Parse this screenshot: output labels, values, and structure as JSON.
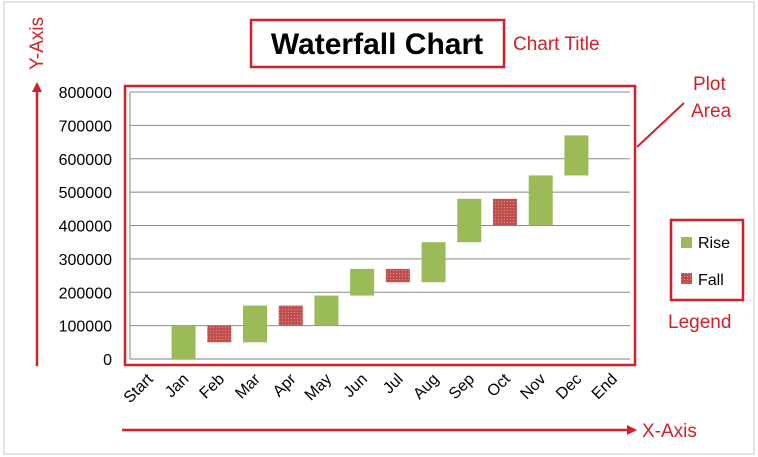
{
  "chart_data": {
    "type": "bar",
    "subtype": "waterfall",
    "title": "Waterfall Chart",
    "categories": [
      "Start",
      "Jan",
      "Feb",
      "Mar",
      "Apr",
      "May",
      "Jun",
      "Jul",
      "Aug",
      "Sep",
      "Oct",
      "Nov",
      "Dec",
      "End"
    ],
    "series": [
      {
        "name": "Rise",
        "color": "#9bbb59",
        "bars": [
          {
            "category": "Jan",
            "low": 0,
            "high": 100000
          },
          {
            "category": "Mar",
            "low": 50000,
            "high": 160000
          },
          {
            "category": "May",
            "low": 100000,
            "high": 190000
          },
          {
            "category": "Jun",
            "low": 190000,
            "high": 270000
          },
          {
            "category": "Aug",
            "low": 230000,
            "high": 350000
          },
          {
            "category": "Sep",
            "low": 350000,
            "high": 480000
          },
          {
            "category": "Nov",
            "low": 400000,
            "high": 550000
          },
          {
            "category": "Dec",
            "low": 550000,
            "high": 670000
          }
        ]
      },
      {
        "name": "Fall",
        "color": "#c0504d",
        "bars": [
          {
            "category": "Feb",
            "low": 50000,
            "high": 100000
          },
          {
            "category": "Apr",
            "low": 100000,
            "high": 160000
          },
          {
            "category": "Jul",
            "low": 230000,
            "high": 270000
          },
          {
            "category": "Oct",
            "low": 400000,
            "high": 480000
          }
        ]
      }
    ],
    "yticks": [
      "0",
      "100000",
      "200000",
      "300000",
      "400000",
      "500000",
      "600000",
      "700000",
      "800000"
    ],
    "ylim": [
      0,
      800000
    ],
    "grid": true,
    "legend_position": "right"
  },
  "annotations": {
    "y_axis": "Y-Axis",
    "x_axis": "X-Axis",
    "chart_title": "Chart Title",
    "plot_area_line1": "Plot",
    "plot_area_line2": "Area",
    "legend": "Legend"
  },
  "colors": {
    "annotation": "#d0212b",
    "gridline": "#888888"
  }
}
